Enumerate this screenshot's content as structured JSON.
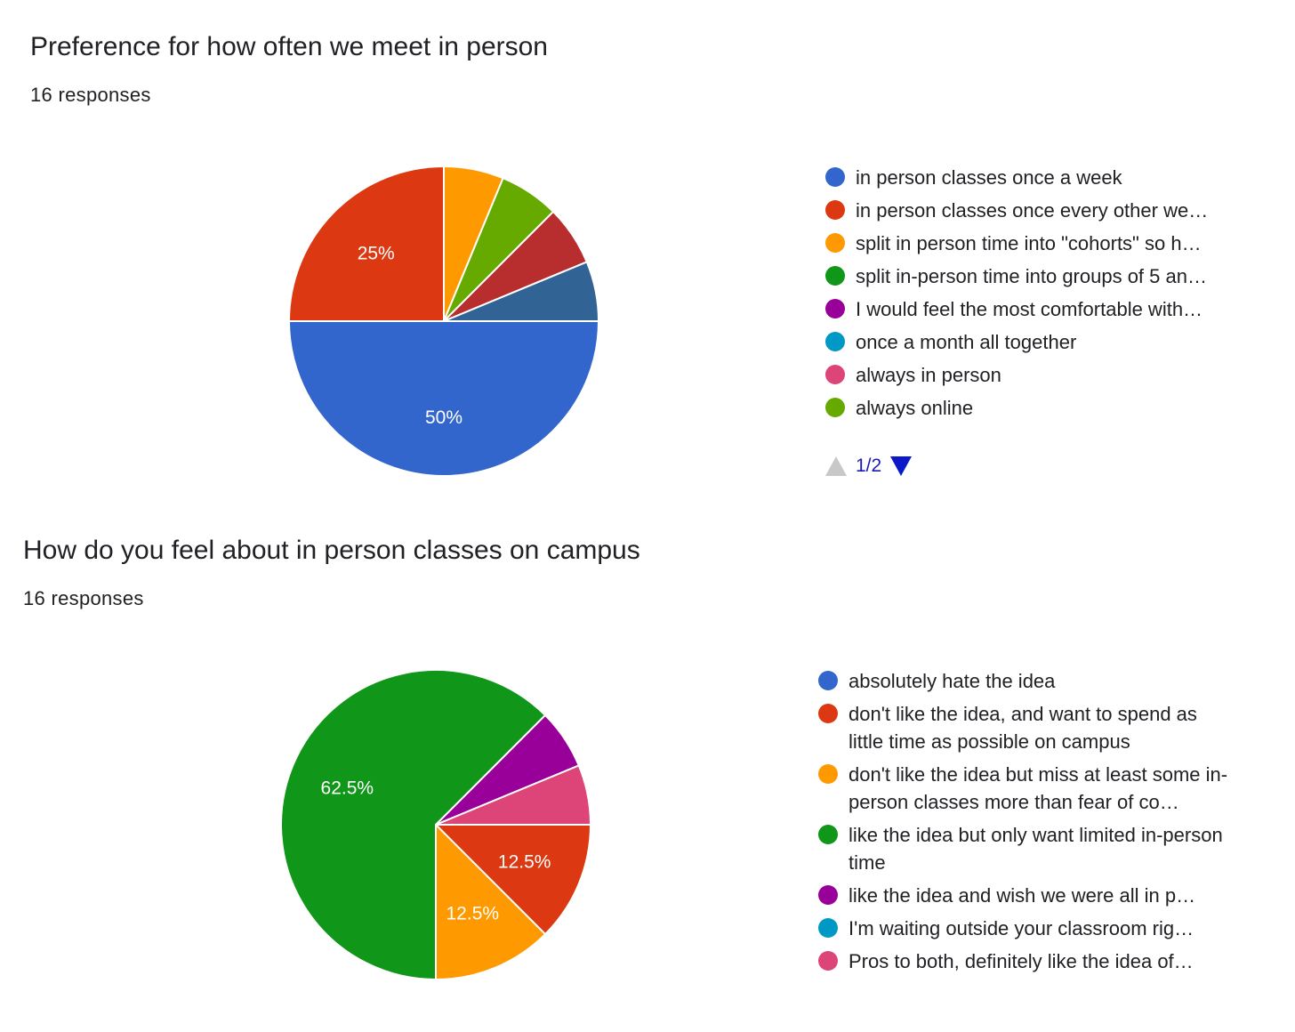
{
  "chart_data": [
    {
      "type": "pie",
      "title": "Preference for how often we meet in person",
      "subtitle": "16 responses",
      "categories": [
        "in person classes once a week",
        "in person classes once every other we…",
        "split in person time into \"cohorts\" so h…",
        "split in-person time into groups of 5 an…",
        "I would feel the most comfortable with…",
        "once a month all together",
        "always in person",
        "always online",
        "",
        ""
      ],
      "values": [
        50,
        25,
        6.25,
        0,
        0,
        0,
        0,
        6.25,
        6.25,
        6.25
      ],
      "colors": [
        "#3366cc",
        "#dc3912",
        "#ff9900",
        "#109618",
        "#990099",
        "#0099c6",
        "#dd4477",
        "#66aa00",
        "#b82e2e",
        "#316395"
      ],
      "slice_labels": [
        "50%",
        "25%",
        "",
        "",
        "",
        "",
        "",
        "",
        "",
        ""
      ],
      "legend_visible_count": 8,
      "legend_position": "right",
      "pager": {
        "text": "1/2"
      }
    },
    {
      "type": "pie",
      "title": "How do you feel about in person classes on campus",
      "subtitle": "16 responses",
      "categories": [
        "absolutely hate the idea",
        "don't like the idea, and want to spend as little time as possible on campus",
        "don't like the idea but miss at least some in-person classes more than fear of co…",
        "like the idea but only want limited in-person time",
        "like the idea and wish we were all in p…",
        "I'm waiting outside your classroom rig…",
        "Pros to both, definitely like the idea of…"
      ],
      "values": [
        0,
        12.5,
        12.5,
        62.5,
        6.25,
        0,
        6.25
      ],
      "colors": [
        "#3366cc",
        "#dc3912",
        "#ff9900",
        "#109618",
        "#990099",
        "#0099c6",
        "#dd4477"
      ],
      "slice_labels": [
        "",
        "12.5%",
        "12.5%",
        "62.5%",
        "",
        "",
        ""
      ],
      "legend_position": "right"
    }
  ]
}
